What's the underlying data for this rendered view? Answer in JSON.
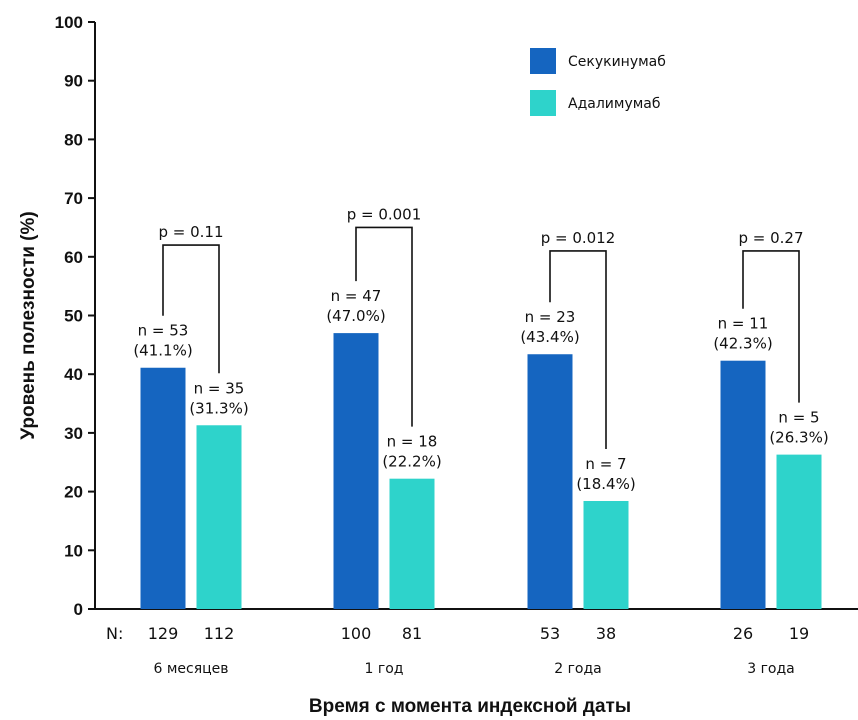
{
  "chart_data": {
    "type": "bar",
    "ylabel": "Уровень полезности (%)",
    "xlabel": "Время с момента индексной даты",
    "ylim": [
      0,
      100
    ],
    "yticks": [
      "0",
      "10",
      "20",
      "30",
      "40",
      "50",
      "60",
      "70",
      "80",
      "90",
      "100"
    ],
    "categories": [
      "6 месяцев",
      "1 год",
      "2 года",
      "3 года"
    ],
    "n_prefix": "N:",
    "legend_position": "top-right",
    "colors": {
      "series1": "#1565C0",
      "series2": "#2ED3CB",
      "axis": "#111111"
    },
    "series": [
      {
        "name": "Секукинумаб",
        "values": [
          41.1,
          47.0,
          43.4,
          42.3
        ],
        "labels_n": [
          "n = 53",
          "n = 47",
          "n = 23",
          "n = 11"
        ],
        "labels_pct": [
          "(41.1%)",
          "(47.0%)",
          "(43.4%)",
          "(42.3%)"
        ],
        "N": [
          "129",
          "100",
          "53",
          "26"
        ]
      },
      {
        "name": "Адалимумаб",
        "values": [
          31.3,
          22.2,
          18.4,
          26.3
        ],
        "labels_n": [
          "n = 35",
          "n = 18",
          "n = 7",
          "n = 5"
        ],
        "labels_pct": [
          "(31.3%)",
          "(22.2%)",
          "(18.4%)",
          "(26.3%)"
        ],
        "N": [
          "112",
          "81",
          "38",
          "19"
        ]
      }
    ],
    "pvalues": [
      "p = 0.11",
      "p = 0.001",
      "p = 0.012",
      "p = 0.27"
    ],
    "pvalue_levels": [
      62,
      65,
      61,
      61
    ]
  }
}
